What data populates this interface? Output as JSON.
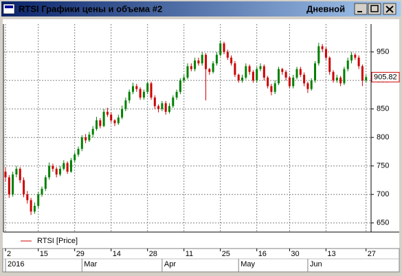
{
  "window": {
    "title": "RTSI Графики цены и объема #2",
    "interval": "Дневной"
  },
  "chart_data": {
    "type": "candlestick",
    "categories": [
      "2",
      null,
      null,
      null,
      null,
      null,
      null,
      null,
      null,
      "15",
      null,
      null,
      null,
      null,
      null,
      null,
      null,
      null,
      null,
      "29",
      null,
      null,
      null,
      null,
      null,
      null,
      null,
      null,
      null,
      "14",
      null,
      null,
      null,
      null,
      null,
      null,
      null,
      null,
      null,
      "28",
      null,
      null,
      null,
      null,
      null,
      null,
      null,
      null,
      null,
      "11",
      null,
      null,
      null,
      null,
      null,
      null,
      null,
      null,
      null,
      "25",
      null,
      null,
      null,
      null,
      null,
      null,
      null,
      null,
      null,
      "16",
      null,
      null,
      null,
      null,
      null,
      null,
      null,
      null,
      "30",
      null,
      null,
      null,
      null,
      null,
      null,
      null,
      null,
      null,
      "13",
      null,
      null,
      null,
      null,
      null,
      null,
      null,
      null,
      null,
      null,
      "27"
    ],
    "months": [
      "2016",
      null,
      null,
      null,
      null,
      null,
      null,
      null,
      null,
      null,
      null,
      null,
      null,
      null,
      null,
      null,
      null,
      null,
      null,
      null,
      null,
      "Mar",
      null,
      null,
      null,
      null,
      null,
      null,
      null,
      null,
      null,
      null,
      null,
      null,
      null,
      null,
      null,
      null,
      null,
      null,
      null,
      null,
      null,
      "Apr",
      null,
      null,
      null,
      null,
      null,
      null,
      null,
      null,
      null,
      null,
      null,
      null,
      null,
      null,
      null,
      null,
      null,
      null,
      null,
      null,
      "May",
      null,
      null,
      null,
      null,
      null,
      null,
      null,
      null,
      null,
      null,
      null,
      null,
      null,
      null,
      null,
      null,
      null,
      null,
      "Jun",
      null,
      null,
      null,
      null,
      null,
      null,
      null,
      null,
      null,
      null,
      null,
      null,
      null,
      null,
      null,
      null,
      null
    ],
    "ylim": [
      634,
      999
    ],
    "yticks": [
      650,
      700,
      750,
      800,
      850,
      900,
      950
    ],
    "grid": true,
    "up_color": "#008000",
    "down_color": "#cc0000",
    "series": [
      {
        "name": "RTSI [Price]",
        "color": "#cc0000",
        "candles": [
          {
            "open": 740,
            "high": 748,
            "low": 722,
            "close": 730
          },
          {
            "open": 730,
            "high": 734,
            "low": 694,
            "close": 700
          },
          {
            "open": 700,
            "high": 740,
            "low": 696,
            "close": 735
          },
          {
            "open": 735,
            "high": 750,
            "low": 730,
            "close": 745
          },
          {
            "open": 745,
            "high": 748,
            "low": 720,
            "close": 725
          },
          {
            "open": 725,
            "high": 730,
            "low": 695,
            "close": 700
          },
          {
            "open": 700,
            "high": 706,
            "low": 684,
            "close": 690
          },
          {
            "open": 690,
            "high": 694,
            "low": 664,
            "close": 670
          },
          {
            "open": 670,
            "high": 686,
            "low": 666,
            "close": 680
          },
          {
            "open": 680,
            "high": 704,
            "low": 676,
            "close": 700
          },
          {
            "open": 700,
            "high": 714,
            "low": 696,
            "close": 710
          },
          {
            "open": 710,
            "high": 734,
            "low": 706,
            "close": 730
          },
          {
            "open": 730,
            "high": 756,
            "low": 726,
            "close": 750
          },
          {
            "open": 750,
            "high": 754,
            "low": 740,
            "close": 745
          },
          {
            "open": 745,
            "high": 748,
            "low": 730,
            "close": 735
          },
          {
            "open": 735,
            "high": 750,
            "low": 732,
            "close": 745
          },
          {
            "open": 745,
            "high": 760,
            "low": 742,
            "close": 755
          },
          {
            "open": 755,
            "high": 758,
            "low": 736,
            "close": 740
          },
          {
            "open": 740,
            "high": 764,
            "low": 738,
            "close": 760
          },
          {
            "open": 760,
            "high": 774,
            "low": 756,
            "close": 770
          },
          {
            "open": 770,
            "high": 784,
            "low": 766,
            "close": 780
          },
          {
            "open": 780,
            "high": 804,
            "low": 776,
            "close": 800
          },
          {
            "open": 800,
            "high": 806,
            "low": 790,
            "close": 795
          },
          {
            "open": 795,
            "high": 810,
            "low": 792,
            "close": 805
          },
          {
            "open": 805,
            "high": 820,
            "low": 800,
            "close": 815
          },
          {
            "open": 815,
            "high": 836,
            "low": 812,
            "close": 830
          },
          {
            "open": 830,
            "high": 834,
            "low": 816,
            "close": 820
          },
          {
            "open": 820,
            "high": 850,
            "low": 818,
            "close": 845
          },
          {
            "open": 845,
            "high": 852,
            "low": 836,
            "close": 840
          },
          {
            "open": 840,
            "high": 844,
            "low": 826,
            "close": 830
          },
          {
            "open": 830,
            "high": 832,
            "low": 820,
            "close": 825
          },
          {
            "open": 825,
            "high": 840,
            "low": 822,
            "close": 835
          },
          {
            "open": 835,
            "high": 856,
            "low": 832,
            "close": 850
          },
          {
            "open": 850,
            "high": 870,
            "low": 846,
            "close": 865
          },
          {
            "open": 865,
            "high": 884,
            "low": 860,
            "close": 880
          },
          {
            "open": 880,
            "high": 896,
            "low": 876,
            "close": 890
          },
          {
            "open": 890,
            "high": 894,
            "low": 880,
            "close": 885
          },
          {
            "open": 885,
            "high": 888,
            "low": 866,
            "close": 870
          },
          {
            "open": 870,
            "high": 884,
            "low": 866,
            "close": 880
          },
          {
            "open": 880,
            "high": 898,
            "low": 876,
            "close": 895
          },
          {
            "open": 895,
            "high": 898,
            "low": 866,
            "close": 870
          },
          {
            "open": 870,
            "high": 874,
            "low": 850,
            "close": 855
          },
          {
            "open": 855,
            "high": 858,
            "low": 844,
            "close": 850
          },
          {
            "open": 850,
            "high": 864,
            "low": 846,
            "close": 860
          },
          {
            "open": 860,
            "high": 864,
            "low": 840,
            "close": 845
          },
          {
            "open": 845,
            "high": 860,
            "low": 842,
            "close": 855
          },
          {
            "open": 855,
            "high": 874,
            "low": 852,
            "close": 870
          },
          {
            "open": 870,
            "high": 884,
            "low": 866,
            "close": 880
          },
          {
            "open": 880,
            "high": 904,
            "low": 876,
            "close": 900
          },
          {
            "open": 900,
            "high": 910,
            "low": 896,
            "close": 905
          },
          {
            "open": 905,
            "high": 930,
            "low": 902,
            "close": 925
          },
          {
            "open": 925,
            "high": 930,
            "low": 916,
            "close": 920
          },
          {
            "open": 920,
            "high": 940,
            "low": 916,
            "close": 935
          },
          {
            "open": 935,
            "high": 940,
            "low": 926,
            "close": 930
          },
          {
            "open": 930,
            "high": 950,
            "low": 926,
            "close": 945
          },
          {
            "open": 945,
            "high": 948,
            "low": 865,
            "close": 920
          },
          {
            "open": 920,
            "high": 922,
            "low": 910,
            "close": 915
          },
          {
            "open": 915,
            "high": 934,
            "low": 912,
            "close": 930
          },
          {
            "open": 930,
            "high": 950,
            "low": 926,
            "close": 945
          },
          {
            "open": 945,
            "high": 970,
            "low": 942,
            "close": 965
          },
          {
            "open": 965,
            "high": 968,
            "low": 946,
            "close": 950
          },
          {
            "open": 950,
            "high": 954,
            "low": 936,
            "close": 940
          },
          {
            "open": 940,
            "high": 944,
            "low": 926,
            "close": 930
          },
          {
            "open": 930,
            "high": 934,
            "low": 906,
            "close": 910
          },
          {
            "open": 910,
            "high": 912,
            "low": 896,
            "close": 900
          },
          {
            "open": 900,
            "high": 910,
            "low": 896,
            "close": 905
          },
          {
            "open": 905,
            "high": 930,
            "low": 902,
            "close": 925
          },
          {
            "open": 925,
            "high": 928,
            "low": 910,
            "close": 915
          },
          {
            "open": 915,
            "high": 918,
            "low": 896,
            "close": 900
          },
          {
            "open": 900,
            "high": 924,
            "low": 896,
            "close": 920
          },
          {
            "open": 920,
            "high": 930,
            "low": 916,
            "close": 925
          },
          {
            "open": 925,
            "high": 928,
            "low": 900,
            "close": 905
          },
          {
            "open": 905,
            "high": 908,
            "low": 886,
            "close": 890
          },
          {
            "open": 890,
            "high": 894,
            "low": 874,
            "close": 880
          },
          {
            "open": 880,
            "high": 900,
            "low": 876,
            "close": 895
          },
          {
            "open": 895,
            "high": 924,
            "low": 892,
            "close": 920
          },
          {
            "open": 920,
            "high": 922,
            "low": 910,
            "close": 915
          },
          {
            "open": 915,
            "high": 918,
            "low": 900,
            "close": 905
          },
          {
            "open": 905,
            "high": 908,
            "low": 886,
            "close": 890
          },
          {
            "open": 890,
            "high": 910,
            "low": 886,
            "close": 905
          },
          {
            "open": 905,
            "high": 924,
            "low": 902,
            "close": 920
          },
          {
            "open": 920,
            "high": 924,
            "low": 906,
            "close": 910
          },
          {
            "open": 910,
            "high": 914,
            "low": 890,
            "close": 895
          },
          {
            "open": 895,
            "high": 898,
            "low": 878,
            "close": 885
          },
          {
            "open": 885,
            "high": 904,
            "low": 882,
            "close": 900
          },
          {
            "open": 900,
            "high": 934,
            "low": 896,
            "close": 930
          },
          {
            "open": 930,
            "high": 966,
            "low": 926,
            "close": 960
          },
          {
            "open": 960,
            "high": 964,
            "low": 950,
            "close": 955
          },
          {
            "open": 955,
            "high": 958,
            "low": 936,
            "close": 940
          },
          {
            "open": 940,
            "high": 942,
            "low": 910,
            "close": 915
          },
          {
            "open": 915,
            "high": 918,
            "low": 896,
            "close": 900
          },
          {
            "open": 900,
            "high": 910,
            "low": 896,
            "close": 905
          },
          {
            "open": 905,
            "high": 908,
            "low": 890,
            "close": 895
          },
          {
            "open": 895,
            "high": 924,
            "low": 892,
            "close": 920
          },
          {
            "open": 920,
            "high": 940,
            "low": 916,
            "close": 935
          },
          {
            "open": 935,
            "high": 950,
            "low": 930,
            "close": 945
          },
          {
            "open": 945,
            "high": 948,
            "low": 936,
            "close": 940
          },
          {
            "open": 940,
            "high": 944,
            "low": 920,
            "close": 925
          },
          {
            "open": 925,
            "high": 928,
            "low": 890,
            "close": 900
          },
          {
            "open": 900,
            "high": 910,
            "low": 896,
            "close": 905.82
          }
        ]
      }
    ]
  }
}
